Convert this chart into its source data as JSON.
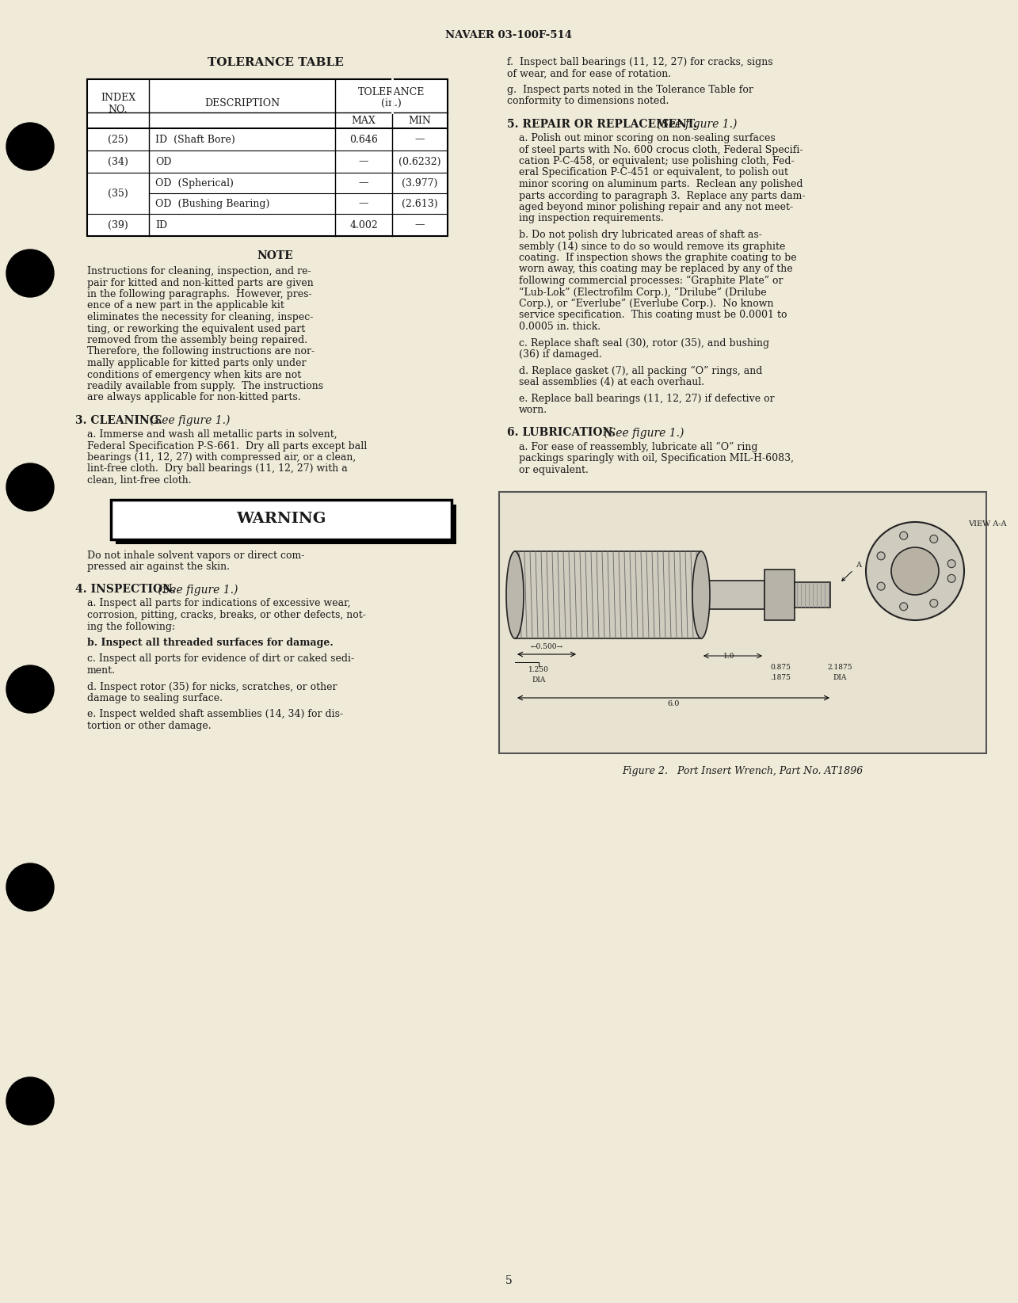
{
  "page_header": "NAVAER 03-100F-514",
  "page_number": "5",
  "bg_color": "#f0ead8",
  "text_color": "#1a1a1a",
  "tolerance_table_title": "TOLERANCE TABLE",
  "table_rows": [
    [
      "(25)",
      "ID  (Shaft Bore)",
      "0.646",
      "—"
    ],
    [
      "(34)",
      "OD",
      "—",
      "(0.6232)"
    ],
    [
      "(35)",
      "OD  (Spherical)",
      "—",
      "(3.977)"
    ],
    [
      "(35)",
      "OD  (Bushing Bearing)",
      "—",
      "(2.613)"
    ],
    [
      "(39)",
      "ID",
      "4.002",
      "—"
    ]
  ],
  "note_title": "NOTE",
  "note_lines": [
    "Instructions for cleaning, inspection, and re-",
    "pair for kitted and non-kitted parts are given",
    "in the following paragraphs.  However, pres-",
    "ence of a new part in the applicable kit",
    "eliminates the necessity for cleaning, inspec-",
    "ting, or reworking the equivalent used part",
    "removed from the assembly being repaired.",
    "Therefore, the following instructions are nor-",
    "mally applicable for kitted parts only under",
    "conditions of emergency when kits are not",
    "readily available from supply.  The instructions",
    "are always applicable for non-kitted parts."
  ],
  "section3_head": "3. CLEANING.",
  "section3_italic": " (See figure 1.)",
  "section3_lines": [
    "a. Immerse and wash all metallic parts in solvent,",
    "Federal Specification P-S-661.  Dry all parts except ball",
    "bearings (11, 12, 27) with compressed air, or a clean,",
    "lint-free cloth.  Dry ball bearings (11, 12, 27) with a",
    "clean, lint-free cloth."
  ],
  "warning_title": "WARNING",
  "warning_lines": [
    "Do not inhale solvent vapors or direct com-",
    "pressed air against the skin."
  ],
  "section4_head": "4. INSPECTION.",
  "section4_italic": " (See figure 1.)",
  "section4a_lines": [
    "a. Inspect all parts for indications of excessive wear,",
    "corrosion, pitting, cracks, breaks, or other defects, not-",
    "ing the following:"
  ],
  "section4b": "b. Inspect all threaded surfaces for damage.",
  "section4c_lines": [
    "c. Inspect all ports for evidence of dirt or caked sedi-",
    "ment."
  ],
  "section4d_lines": [
    "d. Inspect rotor (35) for nicks, scratches, or other",
    "damage to sealing surface."
  ],
  "section4e_lines": [
    "e. Inspect welded shaft assemblies (14, 34) for dis-",
    "tortion or other damage."
  ],
  "right_col_f_lines": [
    "f.  Inspect ball bearings (11, 12, 27) for cracks, signs",
    "of wear, and for ease of rotation."
  ],
  "right_col_g_lines": [
    "g.  Inspect parts noted in the Tolerance Table for",
    "conformity to dimensions noted."
  ],
  "section5_head": "5. REPAIR OR REPLACEMENT.",
  "section5_italic": " (See figure 1.)",
  "section5a_lines": [
    "a. Polish out minor scoring on non-sealing surfaces",
    "of steel parts with No. 600 crocus cloth, Federal Specifi-",
    "cation P-C-458, or equivalent; use polishing cloth, Fed-",
    "eral Specification P-C-451 or equivalent, to polish out",
    "minor scoring on aluminum parts.  Reclean any polished",
    "parts according to paragraph 3.  Replace any parts dam-",
    "aged beyond minor polishing repair and any not meet-",
    "ing inspection requirements."
  ],
  "section5b_lines": [
    "b. Do not polish dry lubricated areas of shaft as-",
    "sembly (14) since to do so would remove its graphite",
    "coating.  If inspection shows the graphite coating to be",
    "worn away, this coating may be replaced by any of the",
    "following commercial processes: “Graphite Plate” or",
    "“Lub-Lok” (Electrofilm Corp.), “Drilube” (Drilube",
    "Corp.), or “Everlube” (Everlube Corp.).  No known",
    "service specification.  This coating must be 0.0001 to",
    "0.0005 in. thick."
  ],
  "section5c_lines": [
    "c. Replace shaft seal (30), rotor (35), and bushing",
    "(36) if damaged."
  ],
  "section5d_lines": [
    "d. Replace gasket (7), all packing “O” rings, and",
    "seal assemblies (4) at each overhaul."
  ],
  "section5e_lines": [
    "e. Replace ball bearings (11, 12, 27) if defective or",
    "worn."
  ],
  "section6_head": "6. LUBRICATION.",
  "section6_italic": " (See figure 1.)",
  "section6a_lines": [
    "a. For ease of reassembly, lubricate all “O” ring",
    "packings sparingly with oil, Specification MIL-H-6083,",
    "or equivalent."
  ],
  "fig_caption": "Figure 2.   Port Insert Wrench, Part No. AT1896"
}
